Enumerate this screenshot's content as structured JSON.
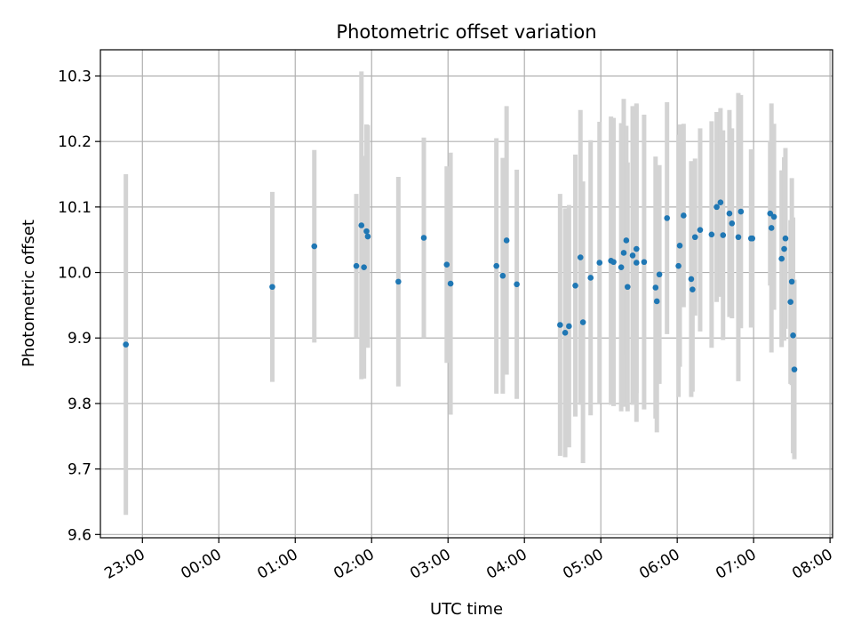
{
  "chart_data": {
    "type": "scatter",
    "title": "Photometric offset variation",
    "xlabel": "UTC time",
    "ylabel": "Photometric offset",
    "xlim": [
      "22:27",
      "08:02"
    ],
    "ylim": [
      9.595,
      10.34
    ],
    "grid": true,
    "x_ticks": [
      "23:00",
      "00:00",
      "01:00",
      "02:00",
      "03:00",
      "04:00",
      "05:00",
      "06:00",
      "07:00",
      "08:00"
    ],
    "y_ticks": [
      9.6,
      9.7,
      9.8,
      9.9,
      10.0,
      10.1,
      10.2,
      10.3
    ],
    "colors": {
      "points": "#1f77b4",
      "errorbars": "#d3d3d3",
      "grid": "#b0b0b0"
    },
    "series": [
      {
        "x": [
          "22:47",
          "00:42",
          "01:15",
          "01:48",
          "01:52",
          "01:54",
          "01:56",
          "01:57",
          "02:21",
          "02:41",
          "02:59",
          "03:02",
          "03:38",
          "03:43",
          "03:46",
          "03:54",
          "04:28",
          "04:32",
          "04:35",
          "04:40",
          "04:44",
          "04:46",
          "04:52",
          "04:59",
          "05:08",
          "05:10",
          "05:16",
          "05:18",
          "05:20",
          "05:21",
          "05:25",
          "05:28",
          "05:28",
          "05:34",
          "05:43",
          "05:44",
          "05:46",
          "05:52",
          "06:01",
          "06:02",
          "06:05",
          "06:11",
          "06:12",
          "06:14",
          "06:18",
          "06:27",
          "06:31",
          "06:34",
          "06:36",
          "06:41",
          "06:43",
          "06:48",
          "06:50",
          "06:58",
          "06:59",
          "07:13",
          "07:14",
          "07:16",
          "07:22",
          "07:24",
          "07:25",
          "07:29",
          "07:30",
          "07:31"
        ],
        "y": [
          9.89,
          9.978,
          10.04,
          10.01,
          10.072,
          10.008,
          10.063,
          10.055,
          9.986,
          10.053,
          10.012,
          9.983,
          10.01,
          9.995,
          10.049,
          9.982,
          9.92,
          9.908,
          9.918,
          9.98,
          10.023,
          9.924,
          9.992,
          10.015,
          10.018,
          10.016,
          10.008,
          10.03,
          10.049,
          9.978,
          10.026,
          10.036,
          10.015,
          10.016,
          9.977,
          9.956,
          9.997,
          10.083,
          10.01,
          10.041,
          10.087,
          9.99,
          9.974,
          10.054,
          10.065,
          10.058,
          10.1,
          10.107,
          10.057,
          10.09,
          10.075,
          10.054,
          10.093,
          10.052,
          10.052,
          10.09,
          10.068,
          10.085,
          10.021,
          10.036,
          10.052,
          9.955,
          9.986,
          9.904
        ],
        "yerr": [
          0.26,
          0.145,
          0.147,
          0.11,
          0.235,
          0.17,
          0.163,
          0.17,
          0.16,
          0.153,
          0.15,
          0.2,
          0.195,
          0.18,
          0.205,
          0.175,
          0.2,
          0.19,
          0.185,
          0.2,
          0.225,
          0.215,
          0.21,
          0.215,
          0.22,
          0.22,
          0.22,
          0.235,
          0.175,
          0.19,
          0.228,
          0.22,
          0.243,
          0.225,
          0.2,
          0.2,
          0.167,
          0.177,
          0.2,
          0.185,
          0.14,
          0.18,
          0.156,
          0.12,
          0.155,
          0.173,
          0.145,
          0.144,
          0.16,
          0.158,
          0.145,
          0.22,
          0.178,
          0.136,
          0.136,
          0.11,
          0.19,
          0.142,
          0.135,
          0.14,
          0.138,
          0.125,
          0.158,
          0.18
        ]
      },
      {
        "x": [
          "07:32"
        ],
        "y": [
          9.852
        ],
        "yerr": [
          0.137
        ]
      }
    ]
  }
}
